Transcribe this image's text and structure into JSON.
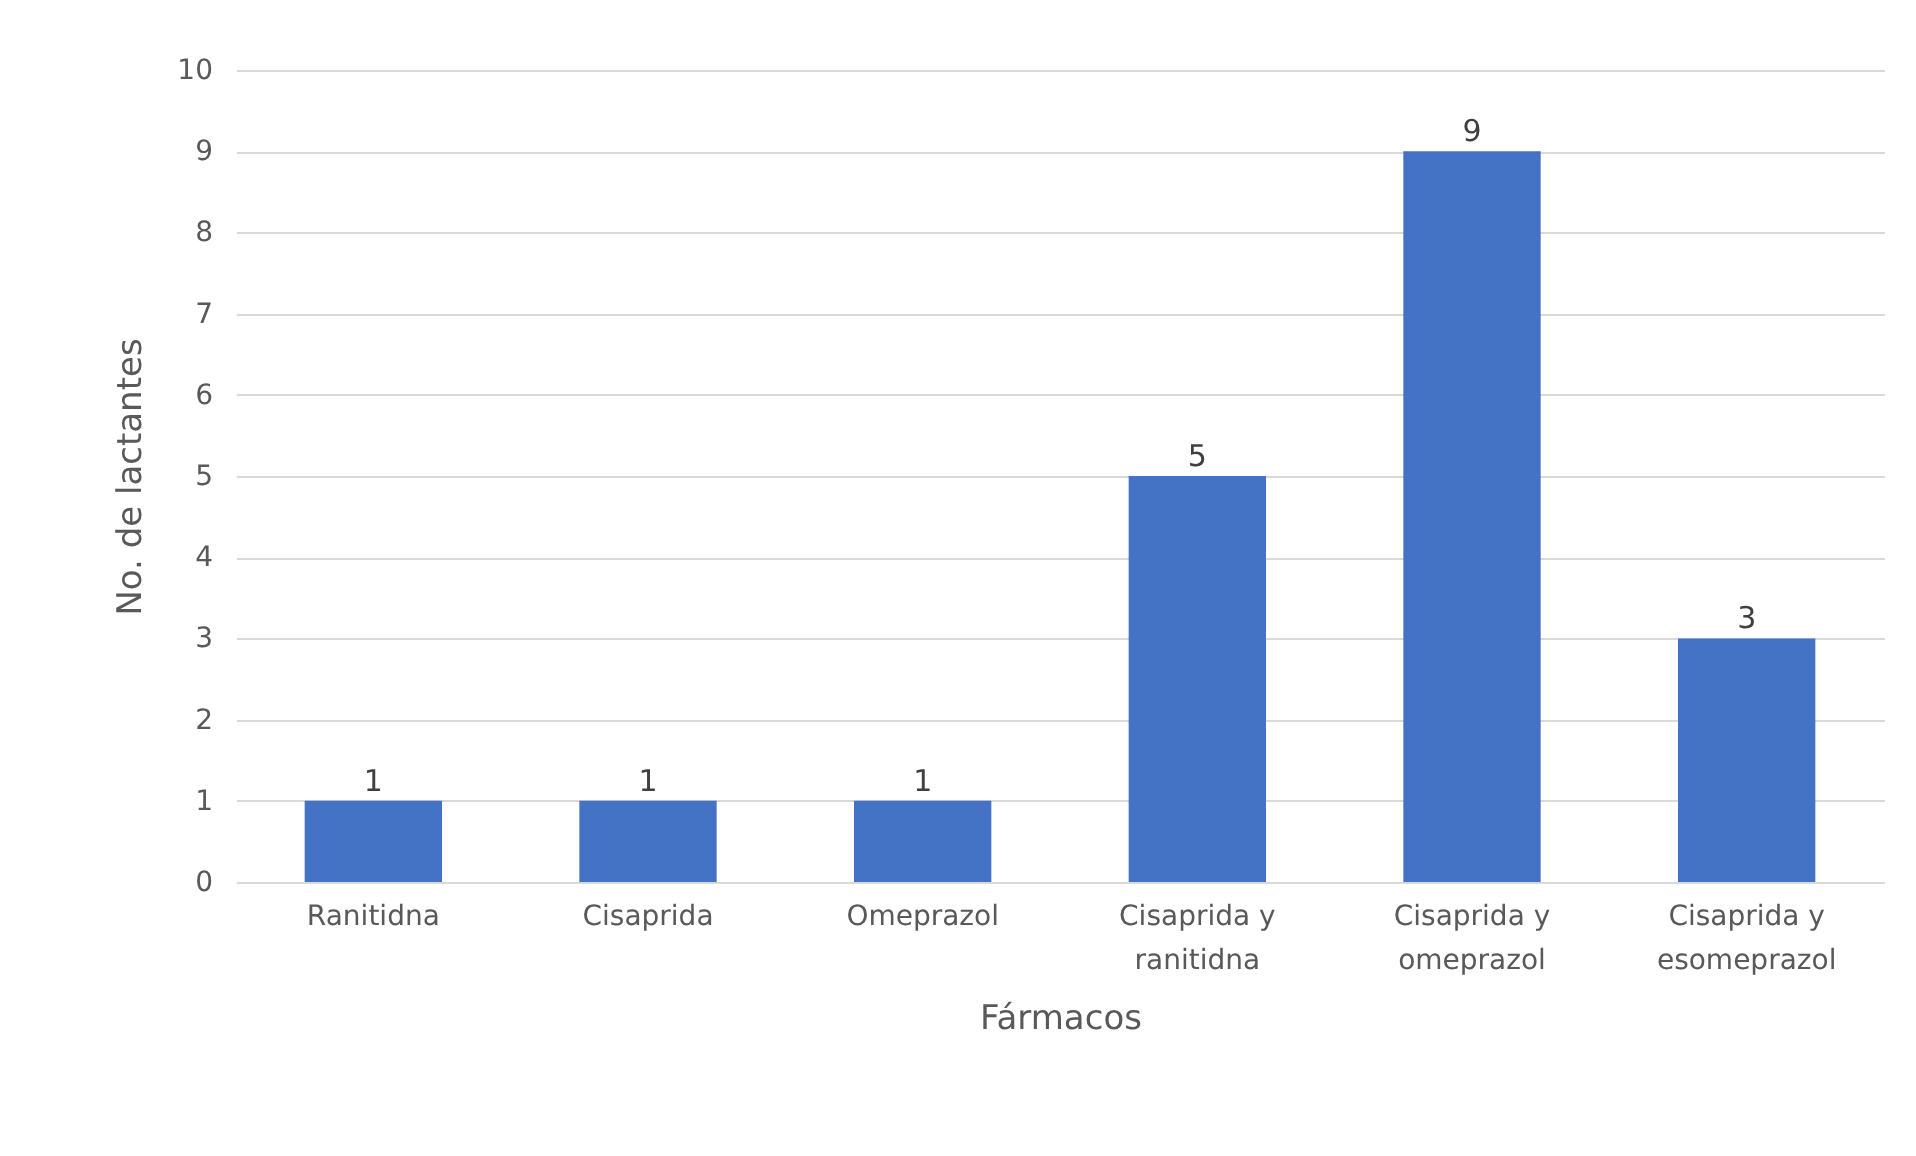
{
  "chart_data": {
    "type": "bar",
    "xlabel": "Fármacos",
    "ylabel": "No. de lactantes",
    "categories": [
      "Ranitidna",
      "Cisaprida",
      "Omeprazol",
      "Cisaprida y ranitidna",
      "Cisaprida y omeprazol",
      "Cisaprida y esomeprazol"
    ],
    "values": [
      1,
      1,
      1,
      5,
      9,
      3
    ],
    "color": "#4472c4",
    "ylim": [
      0,
      10
    ],
    "yticks": [
      0,
      1,
      2,
      3,
      4,
      5,
      6,
      7,
      8,
      9,
      10
    ],
    "grid": "y",
    "data_labels": true
  }
}
